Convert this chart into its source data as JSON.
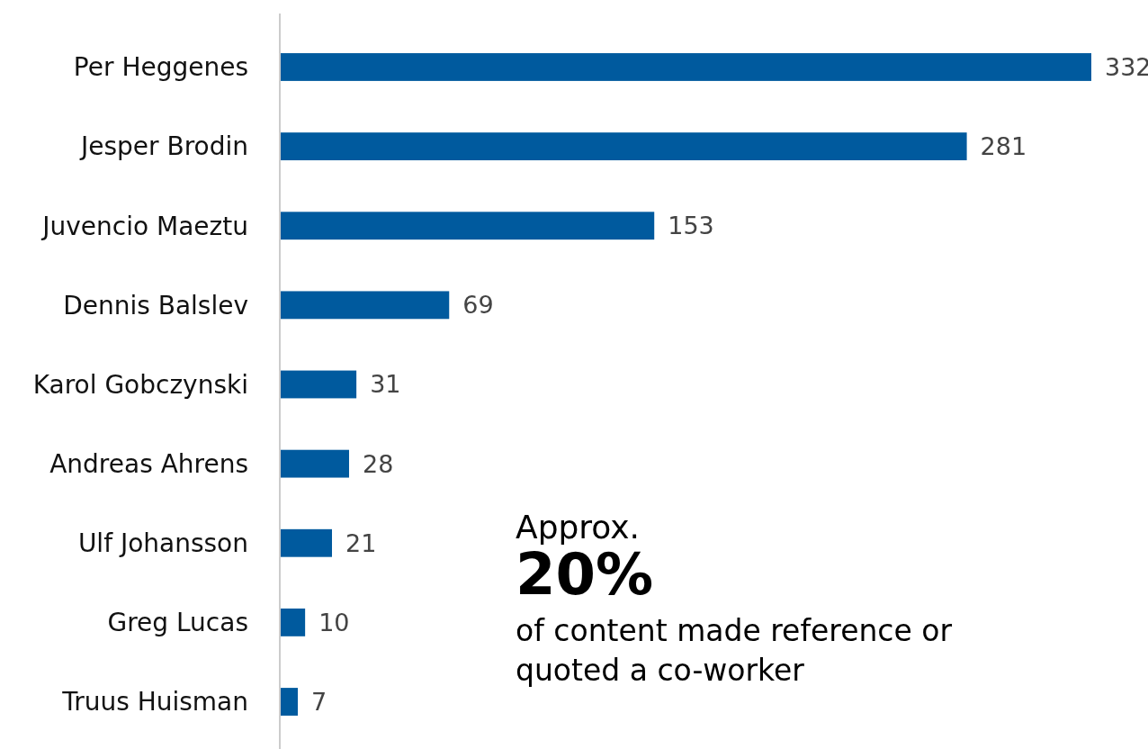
{
  "chart_data": {
    "type": "bar",
    "orientation": "horizontal",
    "categories": [
      "Per Heggenes",
      "Jesper Brodin",
      "Juvencio Maeztu",
      "Dennis Balslev",
      "Karol Gobczynski",
      "Andreas Ahrens",
      "Ulf Johansson",
      "Greg Lucas",
      "Truus Huisman"
    ],
    "values": [
      332,
      281,
      153,
      69,
      31,
      28,
      21,
      10,
      7
    ],
    "color": "#005a9e",
    "data_labels": true,
    "annotations": [
      "Approx.",
      "20%",
      "of content made reference or quoted a co-worker"
    ]
  }
}
